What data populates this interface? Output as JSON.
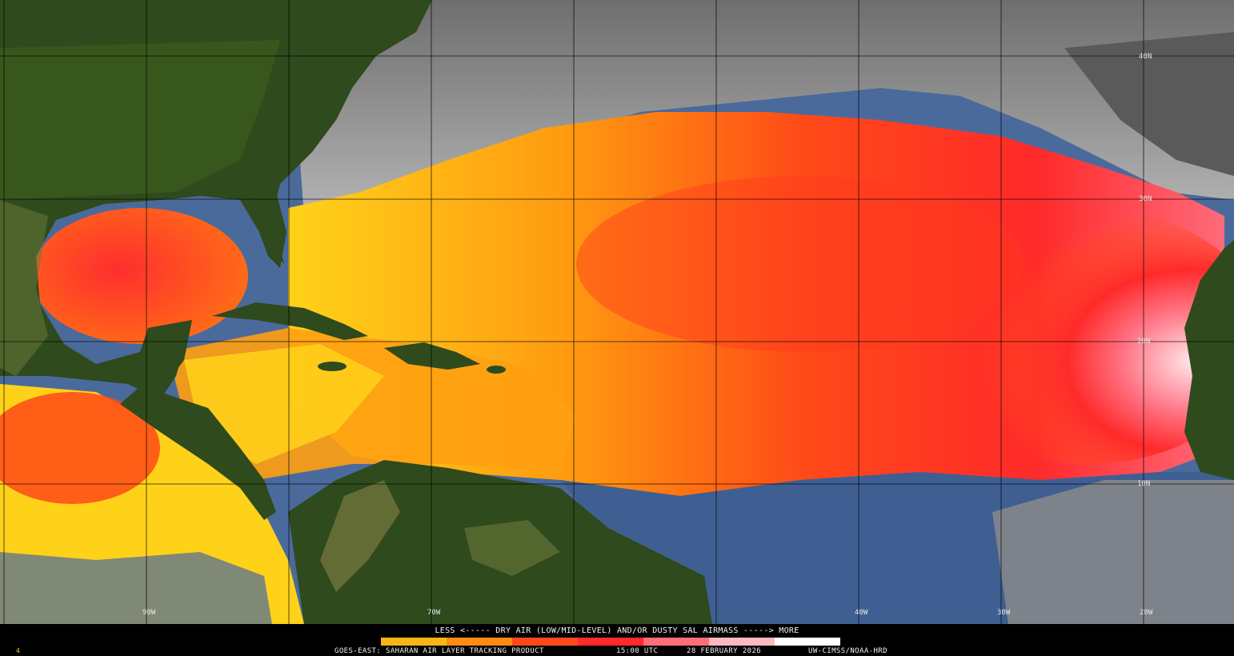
{
  "colors": {
    "ocean_clear": "#4a6a9c",
    "cloud": "#9a9a9a",
    "land": "#2f4a1c",
    "sal_yellow": "#ffd21a",
    "sal_orange": "#ff8a10",
    "sal_red": "#ff2a2a",
    "sal_pink": "#ffd8dc"
  },
  "graticule": {
    "lat_labels": [
      "40N",
      "30N",
      "20N",
      "10N"
    ],
    "lon_labels": [
      "90W",
      "70W",
      "40W",
      "30W",
      "20W"
    ]
  },
  "legend": {
    "text": "LESS <----- DRY AIR (LOW/MID-LEVEL) AND/OR DUSTY SAL AIRMASS -----> MORE",
    "colorbar": [
      "#f7b51a",
      "#ff8c10",
      "#ff4a18",
      "#ff2a2a",
      "#ff6e78",
      "#ffb8c0",
      "#ffffff"
    ]
  },
  "product_line": {
    "satellite_product": "GOES-EAST: SAHARAN AIR LAYER TRACKING PRODUCT",
    "time": "15:00 UTC",
    "date": "28 FEBRUARY 2026",
    "credit": "UW-CIMSS/NOAA-HRD"
  },
  "frame_number": "4"
}
